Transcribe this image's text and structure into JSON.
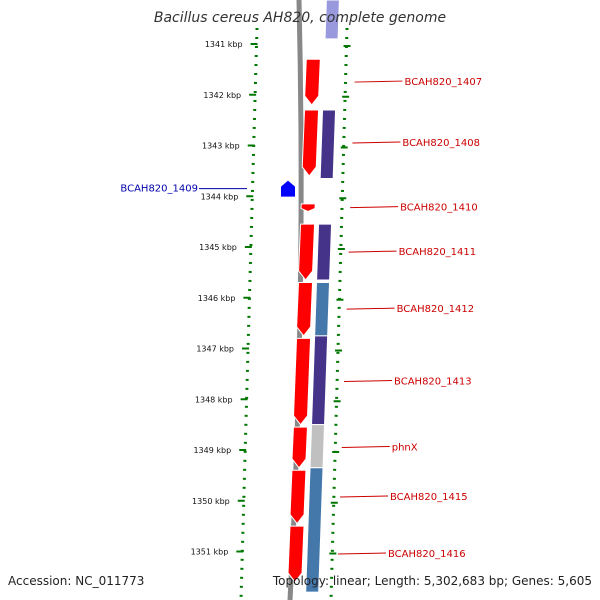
{
  "title": "Bacillus cereus AH820, complete genome",
  "accession": "Accession: NC_011773",
  "topology": "Topology: linear; Length: 5,302,683 bp; Genes: 5,605",
  "colors": {
    "gene_forward": "#ff0000",
    "gene_reverse": "#0000ff",
    "label_forward": "#cc0000",
    "label_reverse": "#0000aa",
    "tick": "#007700",
    "backbone": "#888888",
    "band_palette": [
      "#9999dd",
      "#443388",
      "#4477aa",
      "#c0c0c0",
      "#00bbcc"
    ]
  },
  "kbp_ticks": [
    "1341 kbp",
    "1342 kbp",
    "1343 kbp",
    "1344 kbp",
    "1345 kbp",
    "1346 kbp",
    "1347 kbp",
    "1348 kbp",
    "1349 kbp",
    "1350 kbp",
    "1351 kbp"
  ],
  "genes": [
    {
      "label": "BCAH820_1407",
      "strand": "forward",
      "start_kbp": 1341.3,
      "end_kbp": 1342.2
    },
    {
      "label": "BCAH820_1408",
      "strand": "forward",
      "start_kbp": 1342.3,
      "end_kbp": 1343.6
    },
    {
      "label": "BCAH820_1409",
      "strand": "reverse",
      "start_kbp": 1343.75,
      "end_kbp": 1343.95
    },
    {
      "label": "BCAH820_1410",
      "strand": "forward",
      "start_kbp": 1344.15,
      "end_kbp": 1344.3
    },
    {
      "label": "BCAH820_1411",
      "strand": "forward",
      "start_kbp": 1344.55,
      "end_kbp": 1345.65
    },
    {
      "label": "BCAH820_1412",
      "strand": "forward",
      "start_kbp": 1345.7,
      "end_kbp": 1346.75
    },
    {
      "label": "BCAH820_1413",
      "strand": "forward",
      "start_kbp": 1346.8,
      "end_kbp": 1348.5
    },
    {
      "label": "phnX",
      "strand": "forward",
      "start_kbp": 1348.55,
      "end_kbp": 1349.35
    },
    {
      "label": "BCAH820_1415",
      "strand": "forward",
      "start_kbp": 1349.4,
      "end_kbp": 1350.45
    },
    {
      "label": "BCAH820_1416",
      "strand": "forward",
      "start_kbp": 1350.5,
      "end_kbp": 1351.6
    }
  ],
  "bands": [
    {
      "start_kbp": 1340.0,
      "end_kbp": 1340.9,
      "color": "#9999dd"
    },
    {
      "start_kbp": 1342.3,
      "end_kbp": 1343.65,
      "color": "#443388"
    },
    {
      "start_kbp": 1344.55,
      "end_kbp": 1345.65,
      "color": "#443388"
    },
    {
      "start_kbp": 1345.7,
      "end_kbp": 1346.75,
      "color": "#4477aa"
    },
    {
      "start_kbp": 1346.75,
      "end_kbp": 1348.5,
      "color": "#443388"
    },
    {
      "start_kbp": 1348.5,
      "end_kbp": 1349.35,
      "color": "#c0c0c0"
    },
    {
      "start_kbp": 1349.35,
      "end_kbp": 1351.8,
      "color": "#4477aa"
    }
  ]
}
